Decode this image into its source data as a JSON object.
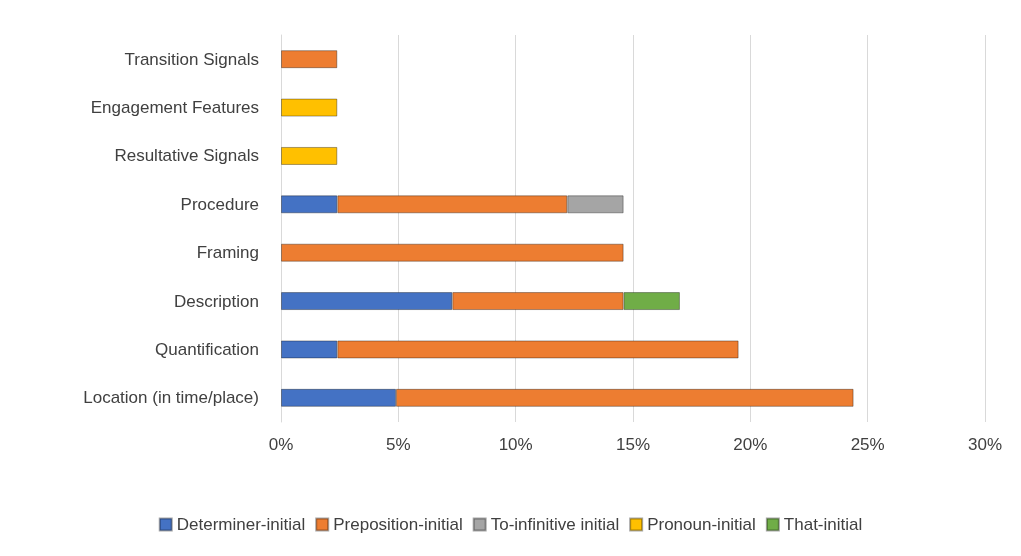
{
  "chart_data": {
    "type": "bar",
    "orientation": "horizontal",
    "stacked": true,
    "categories": [
      "Transition Signals",
      "Engagement Features",
      "Resultative Signals",
      "Procedure",
      "Framing",
      "Description",
      "Quantification",
      "Location (in time/place)"
    ],
    "series": [
      {
        "name": "Determiner-initial",
        "color": "#4472c4",
        "values": [
          null,
          null,
          null,
          2.4,
          null,
          7.3,
          2.4,
          4.9
        ]
      },
      {
        "name": "Preposition-initial",
        "color": "#ed7d31",
        "values": [
          2.4,
          null,
          null,
          9.8,
          14.6,
          7.3,
          17.1,
          19.5
        ]
      },
      {
        "name": "To-infinitive initial",
        "color": "#a5a5a5",
        "values": [
          null,
          null,
          null,
          2.4,
          null,
          null,
          null,
          null
        ]
      },
      {
        "name": "Pronoun-initial",
        "color": "#ffc000",
        "values": [
          null,
          2.4,
          2.4,
          null,
          null,
          null,
          null,
          null
        ]
      },
      {
        "name": "That-initial",
        "color": "#70ad47",
        "values": [
          null,
          null,
          null,
          null,
          null,
          2.4,
          null,
          null
        ]
      }
    ],
    "xlim": [
      0,
      30
    ],
    "xticks": [
      {
        "value": 0,
        "label": "0%"
      },
      {
        "value": 5,
        "label": "5%"
      },
      {
        "value": 10,
        "label": "10%"
      },
      {
        "value": 15,
        "label": "15%"
      },
      {
        "value": 20,
        "label": "20%"
      },
      {
        "value": 25,
        "label": "25%"
      },
      {
        "value": 30,
        "label": "30%"
      }
    ],
    "grid": "x",
    "legend": "bottom"
  }
}
